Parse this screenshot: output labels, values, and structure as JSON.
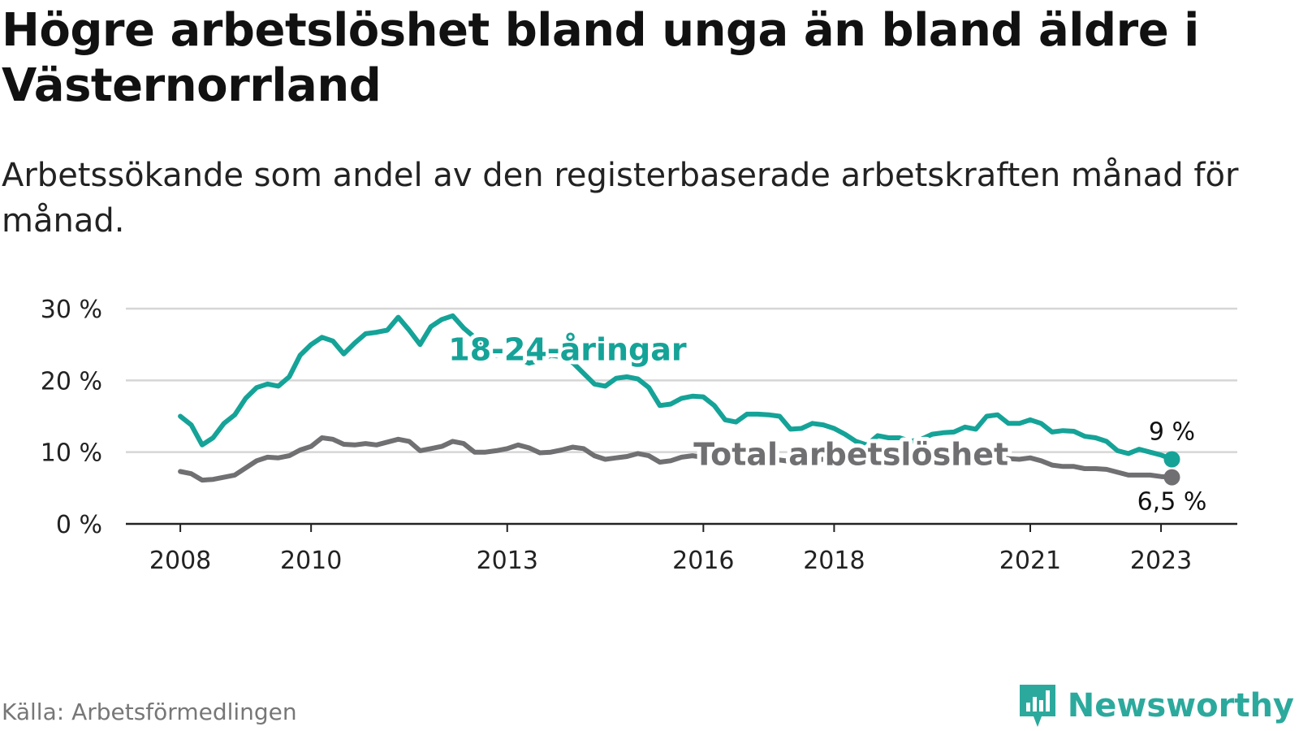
{
  "title": "Högre arbetslöshet bland unga än bland äldre i Västernorrland",
  "subtitle": "Arbetssökande som andel av den registerbaserade arbetskraften månad för månad.",
  "source": "Källa: Arbetsförmedlingen",
  "brand": {
    "name": "Newsworthy",
    "icon": "newsworthy-logo-icon",
    "color": "#2ca99d"
  },
  "chart_data": {
    "type": "line",
    "title": "Högre arbetslöshet bland unga än bland äldre i Västernorrland",
    "subtitle": "Arbetssökande som andel av den registerbaserade arbetskraften månad för månad.",
    "xlabel": "",
    "ylabel": "",
    "x_ticks": [
      "2008",
      "2010",
      "2013",
      "2016",
      "2018",
      "2021",
      "2023"
    ],
    "y_ticks": [
      "0 %",
      "10 %",
      "20 %",
      "30 %"
    ],
    "ylim": [
      0,
      30
    ],
    "xlim": [
      "2007-03",
      "2024-03"
    ],
    "grid": true,
    "series": [
      {
        "name": "18-24-åringar",
        "color": "#15a398",
        "end_label": "9 %",
        "points": [
          [
            "2008-01",
            15.0
          ],
          [
            "2008-03",
            13.8
          ],
          [
            "2008-05",
            11.0
          ],
          [
            "2008-07",
            12.0
          ],
          [
            "2008-09",
            14.0
          ],
          [
            "2008-11",
            15.2
          ],
          [
            "2009-01",
            17.5
          ],
          [
            "2009-03",
            19.0
          ],
          [
            "2009-05",
            19.5
          ],
          [
            "2009-07",
            19.2
          ],
          [
            "2009-09",
            20.5
          ],
          [
            "2009-11",
            23.5
          ],
          [
            "2010-01",
            25.0
          ],
          [
            "2010-03",
            26.0
          ],
          [
            "2010-05",
            25.5
          ],
          [
            "2010-07",
            23.7
          ],
          [
            "2010-09",
            25.2
          ],
          [
            "2010-11",
            26.5
          ],
          [
            "2011-01",
            26.7
          ],
          [
            "2011-03",
            27.0
          ],
          [
            "2011-05",
            28.8
          ],
          [
            "2011-07",
            27.0
          ],
          [
            "2011-09",
            25.0
          ],
          [
            "2011-11",
            27.5
          ],
          [
            "2012-01",
            28.5
          ],
          [
            "2012-03",
            29.0
          ],
          [
            "2012-05",
            27.3
          ],
          [
            "2012-07",
            26.0
          ],
          [
            "2012-09",
            24.5
          ],
          [
            "2012-11",
            23.5
          ],
          [
            "2013-01",
            23.8
          ],
          [
            "2013-03",
            23.0
          ],
          [
            "2013-05",
            22.4
          ],
          [
            "2013-07",
            22.8
          ],
          [
            "2013-09",
            23.5
          ],
          [
            "2013-11",
            23.3
          ],
          [
            "2014-01",
            22.5
          ],
          [
            "2014-03",
            21.0
          ],
          [
            "2014-05",
            19.5
          ],
          [
            "2014-07",
            19.2
          ],
          [
            "2014-09",
            20.3
          ],
          [
            "2014-11",
            20.5
          ],
          [
            "2015-01",
            20.2
          ],
          [
            "2015-03",
            19.0
          ],
          [
            "2015-05",
            16.5
          ],
          [
            "2015-07",
            16.7
          ],
          [
            "2015-09",
            17.5
          ],
          [
            "2015-11",
            17.8
          ],
          [
            "2016-01",
            17.7
          ],
          [
            "2016-03",
            16.5
          ],
          [
            "2016-05",
            14.5
          ],
          [
            "2016-07",
            14.2
          ],
          [
            "2016-09",
            15.3
          ],
          [
            "2016-11",
            15.3
          ],
          [
            "2017-01",
            15.2
          ],
          [
            "2017-03",
            15.0
          ],
          [
            "2017-05",
            13.2
          ],
          [
            "2017-07",
            13.3
          ],
          [
            "2017-09",
            14.0
          ],
          [
            "2017-11",
            13.8
          ],
          [
            "2018-01",
            13.3
          ],
          [
            "2018-03",
            12.5
          ],
          [
            "2018-05",
            11.5
          ],
          [
            "2018-07",
            11.0
          ],
          [
            "2018-09",
            12.3
          ],
          [
            "2018-11",
            12.0
          ],
          [
            "2019-01",
            12.0
          ],
          [
            "2019-03",
            11.5
          ],
          [
            "2019-05",
            11.8
          ],
          [
            "2019-07",
            12.5
          ],
          [
            "2019-09",
            12.7
          ],
          [
            "2019-11",
            12.8
          ],
          [
            "2020-01",
            13.5
          ],
          [
            "2020-03",
            13.2
          ],
          [
            "2020-05",
            15.0
          ],
          [
            "2020-07",
            15.2
          ],
          [
            "2020-09",
            14.0
          ],
          [
            "2020-11",
            14.0
          ],
          [
            "2021-01",
            14.5
          ],
          [
            "2021-03",
            14.0
          ],
          [
            "2021-05",
            12.8
          ],
          [
            "2021-07",
            13.0
          ],
          [
            "2021-09",
            12.9
          ],
          [
            "2021-11",
            12.2
          ],
          [
            "2022-01",
            12.0
          ],
          [
            "2022-03",
            11.5
          ],
          [
            "2022-05",
            10.2
          ],
          [
            "2022-07",
            9.8
          ],
          [
            "2022-09",
            10.4
          ],
          [
            "2022-11",
            10.0
          ],
          [
            "2023-01",
            9.6
          ],
          [
            "2023-03",
            9.0
          ]
        ]
      },
      {
        "name": "Total arbetslöshet",
        "color": "#707073",
        "end_label": "6,5 %",
        "points": [
          [
            "2008-01",
            7.3
          ],
          [
            "2008-03",
            7.0
          ],
          [
            "2008-05",
            6.1
          ],
          [
            "2008-07",
            6.2
          ],
          [
            "2008-09",
            6.5
          ],
          [
            "2008-11",
            6.8
          ],
          [
            "2009-01",
            7.8
          ],
          [
            "2009-03",
            8.8
          ],
          [
            "2009-05",
            9.3
          ],
          [
            "2009-07",
            9.2
          ],
          [
            "2009-09",
            9.5
          ],
          [
            "2009-11",
            10.3
          ],
          [
            "2010-01",
            10.8
          ],
          [
            "2010-03",
            12.0
          ],
          [
            "2010-05",
            11.8
          ],
          [
            "2010-07",
            11.1
          ],
          [
            "2010-09",
            11.0
          ],
          [
            "2010-11",
            11.2
          ],
          [
            "2011-01",
            11.0
          ],
          [
            "2011-03",
            11.4
          ],
          [
            "2011-05",
            11.8
          ],
          [
            "2011-07",
            11.5
          ],
          [
            "2011-09",
            10.2
          ],
          [
            "2011-11",
            10.5
          ],
          [
            "2012-01",
            10.8
          ],
          [
            "2012-03",
            11.5
          ],
          [
            "2012-05",
            11.2
          ],
          [
            "2012-07",
            10.0
          ],
          [
            "2012-09",
            10.0
          ],
          [
            "2012-11",
            10.2
          ],
          [
            "2013-01",
            10.5
          ],
          [
            "2013-03",
            11.0
          ],
          [
            "2013-05",
            10.6
          ],
          [
            "2013-07",
            9.9
          ],
          [
            "2013-09",
            10.0
          ],
          [
            "2013-11",
            10.3
          ],
          [
            "2014-01",
            10.7
          ],
          [
            "2014-03",
            10.5
          ],
          [
            "2014-05",
            9.5
          ],
          [
            "2014-07",
            9.0
          ],
          [
            "2014-09",
            9.2
          ],
          [
            "2014-11",
            9.4
          ],
          [
            "2015-01",
            9.8
          ],
          [
            "2015-03",
            9.5
          ],
          [
            "2015-05",
            8.6
          ],
          [
            "2015-07",
            8.8
          ],
          [
            "2015-09",
            9.3
          ],
          [
            "2015-11",
            9.5
          ],
          [
            "2016-01",
            9.3
          ],
          [
            "2016-03",
            9.0
          ],
          [
            "2016-05",
            8.6
          ],
          [
            "2016-07",
            8.8
          ],
          [
            "2016-09",
            9.0
          ],
          [
            "2016-11",
            9.1
          ],
          [
            "2017-01",
            9.0
          ],
          [
            "2017-03",
            8.9
          ],
          [
            "2017-05",
            8.7
          ],
          [
            "2017-07",
            8.7
          ],
          [
            "2017-09",
            8.9
          ],
          [
            "2017-11",
            9.0
          ],
          [
            "2018-01",
            8.9
          ],
          [
            "2018-03",
            8.6
          ],
          [
            "2018-05",
            8.3
          ],
          [
            "2018-07",
            8.4
          ],
          [
            "2018-09",
            8.5
          ],
          [
            "2018-11",
            8.6
          ],
          [
            "2019-01",
            8.6
          ],
          [
            "2019-03",
            8.5
          ],
          [
            "2019-05",
            8.5
          ],
          [
            "2019-07",
            8.7
          ],
          [
            "2019-09",
            9.0
          ],
          [
            "2019-11",
            9.3
          ],
          [
            "2020-01",
            9.5
          ],
          [
            "2020-03",
            9.7
          ],
          [
            "2020-05",
            9.6
          ],
          [
            "2020-07",
            9.3
          ],
          [
            "2020-09",
            9.1
          ],
          [
            "2020-11",
            9.0
          ],
          [
            "2021-01",
            9.2
          ],
          [
            "2021-03",
            8.8
          ],
          [
            "2021-05",
            8.2
          ],
          [
            "2021-07",
            8.0
          ],
          [
            "2021-09",
            8.0
          ],
          [
            "2021-11",
            7.7
          ],
          [
            "2022-01",
            7.7
          ],
          [
            "2022-03",
            7.6
          ],
          [
            "2022-05",
            7.2
          ],
          [
            "2022-07",
            6.8
          ],
          [
            "2022-09",
            6.8
          ],
          [
            "2022-11",
            6.8
          ],
          [
            "2023-01",
            6.6
          ],
          [
            "2023-03",
            6.5
          ]
        ]
      }
    ]
  }
}
